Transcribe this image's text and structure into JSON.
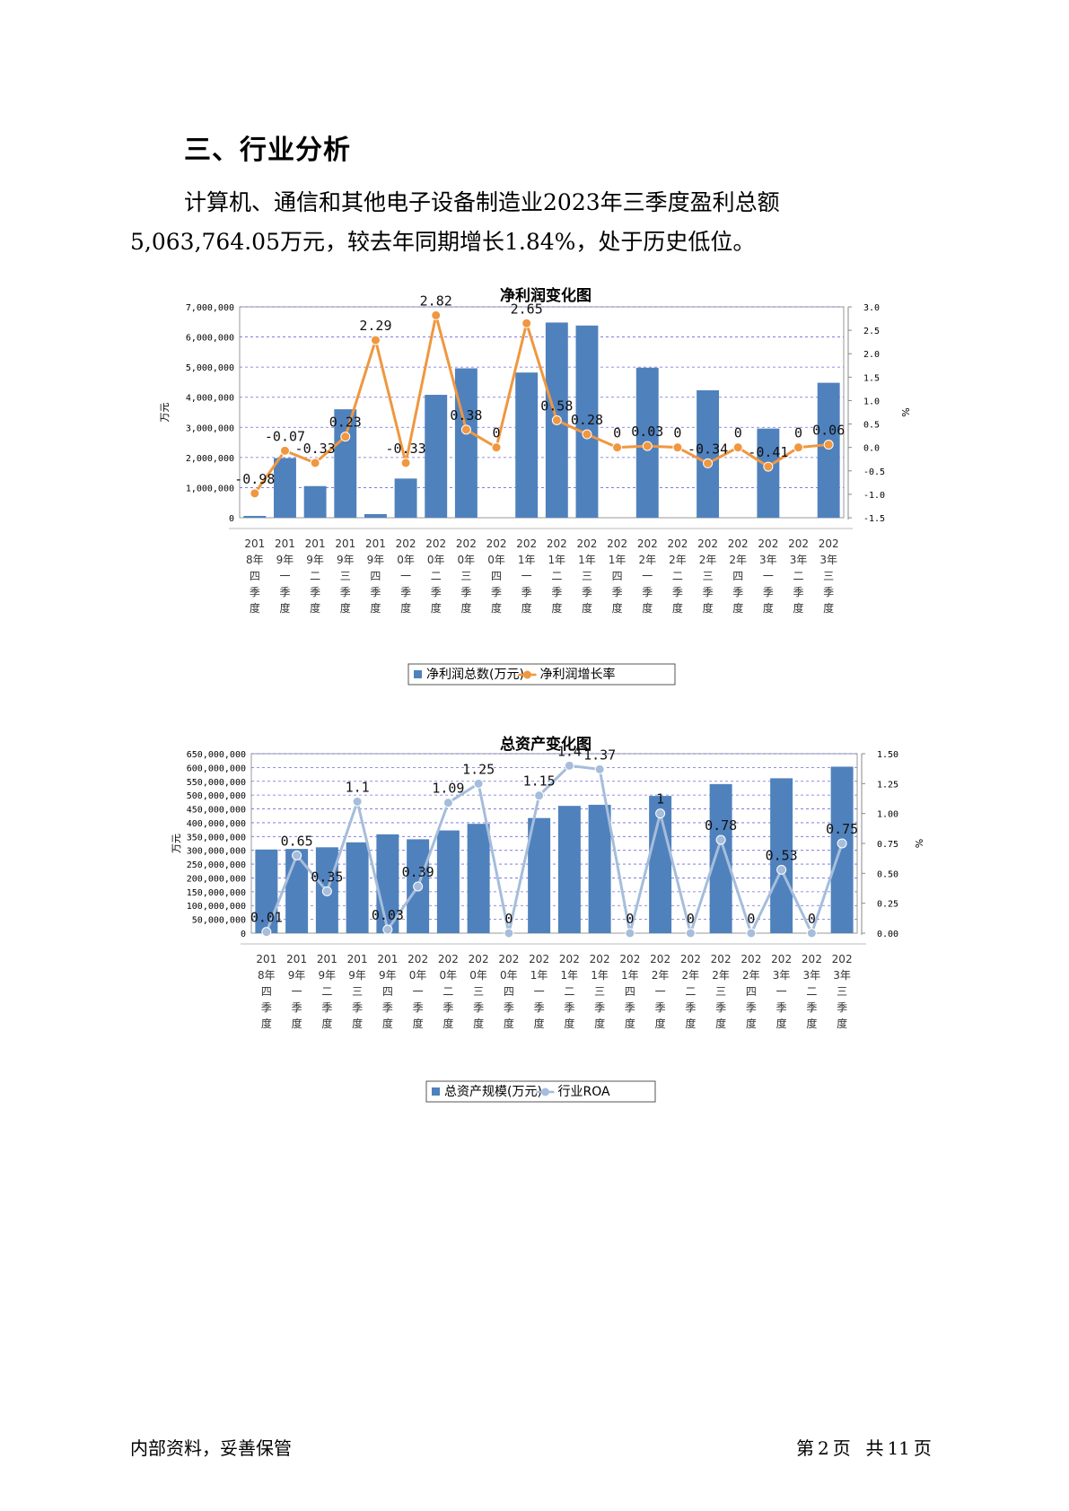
{
  "section": {
    "title": "三、行业分析"
  },
  "paragraph": {
    "text": "计算机、通信和其他电子设备制造业2023年三季度盈利总额5,063,764.05万元，较去年同期增长1.84%，处于历史低位。"
  },
  "footer": {
    "left": "内部资料，妥善保管",
    "page_prefix": "第",
    "page": "2",
    "page_unit": "页",
    "total_prefix": "共",
    "total": "11",
    "total_unit": "页"
  },
  "chart_data": [
    {
      "type": "bar",
      "title": "净利润变化图",
      "ylabel": "万元",
      "ylabel_right": "%",
      "categories": [
        "2018年四季度",
        "2019年一季度",
        "2019年二季度",
        "2019年三季度",
        "2019年四季度",
        "2020年一季度",
        "2020年二季度",
        "2020年三季度",
        "2020年四季度",
        "2021年一季度",
        "2021年二季度",
        "2021年三季度",
        "2021年四季度",
        "2022年一季度",
        "2022年二季度",
        "2022年三季度",
        "2022年四季度",
        "2023年一季度",
        "2023年二季度",
        "2023年三季度"
      ],
      "category_lines": [
        [
          "201",
          "8年",
          "四",
          "季",
          "度"
        ],
        [
          "201",
          "9年",
          "一",
          "季",
          "度"
        ],
        [
          "201",
          "9年",
          "二",
          "季",
          "度"
        ],
        [
          "201",
          "9年",
          "三",
          "季",
          "度"
        ],
        [
          "201",
          "9年",
          "四",
          "季",
          "度"
        ],
        [
          "202",
          "0年",
          "一",
          "季",
          "度"
        ],
        [
          "202",
          "0年",
          "二",
          "季",
          "度"
        ],
        [
          "202",
          "0年",
          "三",
          "季",
          "度"
        ],
        [
          "202",
          "0年",
          "四",
          "季",
          "度"
        ],
        [
          "202",
          "1年",
          "一",
          "季",
          "度"
        ],
        [
          "202",
          "1年",
          "二",
          "季",
          "度"
        ],
        [
          "202",
          "1年",
          "三",
          "季",
          "度"
        ],
        [
          "202",
          "1年",
          "四",
          "季",
          "度"
        ],
        [
          "202",
          "2年",
          "一",
          "季",
          "度"
        ],
        [
          "202",
          "2年",
          "二",
          "季",
          "度"
        ],
        [
          "202",
          "2年",
          "三",
          "季",
          "度"
        ],
        [
          "202",
          "2年",
          "四",
          "季",
          "度"
        ],
        [
          "202",
          "3年",
          "一",
          "季",
          "度"
        ],
        [
          "202",
          "3年",
          "二",
          "季",
          "度"
        ],
        [
          "202",
          "3年",
          "三",
          "季",
          "度"
        ]
      ],
      "series": [
        {
          "name": "净利润总数(万元)",
          "type": "bar",
          "axis": "left",
          "color": "#4f81bd",
          "values": [
            60000,
            1980000,
            1050000,
            3600000,
            120000,
            1300000,
            4080000,
            4960000,
            0,
            4820000,
            6480000,
            6380000,
            0,
            4980000,
            0,
            4230000,
            0,
            2960000,
            0,
            4480000
          ]
        },
        {
          "name": "净利润增长率",
          "type": "line",
          "axis": "right",
          "color": "#f0973f",
          "values": [
            -0.98,
            -0.07,
            -0.33,
            0.23,
            2.29,
            -0.33,
            2.82,
            0.38,
            0,
            2.65,
            0.58,
            0.28,
            0,
            0.03,
            0,
            -0.34,
            0,
            -0.41,
            0,
            0.06
          ],
          "labels": [
            "-0.98",
            "-0.07",
            "-0.33",
            "0.23",
            "2.29",
            "-0.33",
            "2.82",
            "0.38",
            "0",
            "2.65",
            "0.58",
            "0.28",
            "0",
            "0.03",
            "0",
            "-0.34",
            "0",
            "-0.41",
            "0",
            "0.06"
          ]
        }
      ],
      "ylim": [
        0,
        7000000
      ],
      "yticks": [
        0,
        1000000,
        2000000,
        3000000,
        4000000,
        5000000,
        6000000,
        7000000
      ],
      "ytick_labels": [
        "0",
        "1,000,000",
        "2,000,000",
        "3,000,000",
        "4,000,000",
        "5,000,000",
        "6,000,000",
        "7,000,000"
      ],
      "ylim_right": [
        -1.5,
        3.0
      ],
      "yticks_right": [
        -1.5,
        -1.0,
        -0.5,
        0.0,
        0.5,
        1.0,
        1.5,
        2.0,
        2.5,
        3.0
      ],
      "ytick_labels_right": [
        "-1.5",
        "-1.0",
        "-0.5",
        "0.0",
        "0.5",
        "1.0",
        "1.5",
        "2.0",
        "2.5",
        "3.0"
      ],
      "grid": true,
      "legend": "bottom"
    },
    {
      "type": "bar",
      "title": "总资产变化图",
      "ylabel": "万元",
      "ylabel_right": "%",
      "categories": [
        "2018年四季度",
        "2019年一季度",
        "2019年二季度",
        "2019年三季度",
        "2019年四季度",
        "2020年一季度",
        "2020年二季度",
        "2020年三季度",
        "2020年四季度",
        "2021年一季度",
        "2021年二季度",
        "2021年三季度",
        "2021年四季度",
        "2022年一季度",
        "2022年二季度",
        "2022年三季度",
        "2022年四季度",
        "2023年一季度",
        "2023年二季度",
        "2023年三季度"
      ],
      "category_lines": [
        [
          "201",
          "8年",
          "四",
          "季",
          "度"
        ],
        [
          "201",
          "9年",
          "一",
          "季",
          "度"
        ],
        [
          "201",
          "9年",
          "二",
          "季",
          "度"
        ],
        [
          "201",
          "9年",
          "三",
          "季",
          "度"
        ],
        [
          "201",
          "9年",
          "四",
          "季",
          "度"
        ],
        [
          "202",
          "0年",
          "一",
          "季",
          "度"
        ],
        [
          "202",
          "0年",
          "二",
          "季",
          "度"
        ],
        [
          "202",
          "0年",
          "三",
          "季",
          "度"
        ],
        [
          "202",
          "0年",
          "四",
          "季",
          "度"
        ],
        [
          "202",
          "1年",
          "一",
          "季",
          "度"
        ],
        [
          "202",
          "1年",
          "二",
          "季",
          "度"
        ],
        [
          "202",
          "1年",
          "三",
          "季",
          "度"
        ],
        [
          "202",
          "1年",
          "四",
          "季",
          "度"
        ],
        [
          "202",
          "2年",
          "一",
          "季",
          "度"
        ],
        [
          "202",
          "2年",
          "二",
          "季",
          "度"
        ],
        [
          "202",
          "2年",
          "三",
          "季",
          "度"
        ],
        [
          "202",
          "2年",
          "四",
          "季",
          "度"
        ],
        [
          "202",
          "3年",
          "一",
          "季",
          "度"
        ],
        [
          "202",
          "3年",
          "二",
          "季",
          "度"
        ],
        [
          "202",
          "3年",
          "三",
          "季",
          "度"
        ]
      ],
      "series": [
        {
          "name": "总资产规模(万元)",
          "type": "bar",
          "axis": "left",
          "color": "#4f81bd",
          "values": [
            303000000,
            305000000,
            311000000,
            329000000,
            358000000,
            340000000,
            372000000,
            396000000,
            0,
            417000000,
            461000000,
            465000000,
            0,
            497000000,
            0,
            540000000,
            0,
            561000000,
            0,
            603000000
          ]
        },
        {
          "name": "行业ROA",
          "type": "line",
          "axis": "right",
          "color": "#a6bddb",
          "values": [
            0.01,
            0.65,
            0.35,
            1.1,
            0.03,
            0.39,
            1.09,
            1.25,
            0,
            1.15,
            1.4,
            1.37,
            0,
            1,
            0,
            0.78,
            0,
            0.53,
            0,
            0.75
          ],
          "labels": [
            "0.01",
            "0.65",
            "0.35",
            "1.1",
            "0.03",
            "0.39",
            "1.09",
            "1.25",
            "0",
            "1.15",
            "1.4",
            "1.37",
            "0",
            "1",
            "0",
            "0.78",
            "0",
            "0.53",
            "0",
            "0.75"
          ]
        }
      ],
      "ylim": [
        0,
        650000000
      ],
      "yticks": [
        0,
        50000000,
        100000000,
        150000000,
        200000000,
        250000000,
        300000000,
        350000000,
        400000000,
        450000000,
        500000000,
        550000000,
        600000000,
        650000000
      ],
      "ytick_labels": [
        "0",
        "50,000,000",
        "100,000,000",
        "150,000,000",
        "200,000,000",
        "250,000,000",
        "300,000,000",
        "350,000,000",
        "400,000,000",
        "450,000,000",
        "500,000,000",
        "550,000,000",
        "600,000,000",
        "650,000,000"
      ],
      "ylim_right": [
        0,
        1.5
      ],
      "yticks_right": [
        0,
        0.25,
        0.5,
        0.75,
        1.0,
        1.25,
        1.5
      ],
      "ytick_labels_right": [
        "0.00",
        "0.25",
        "0.50",
        "0.75",
        "1.00",
        "1.25",
        "1.50"
      ],
      "grid": true,
      "legend": "bottom"
    }
  ]
}
